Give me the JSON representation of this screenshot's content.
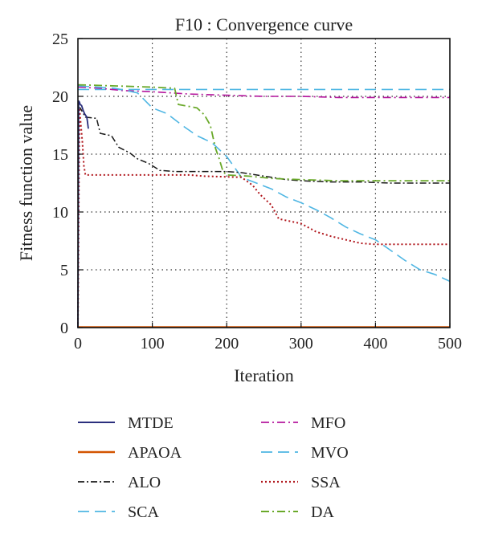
{
  "chart_data": {
    "type": "line",
    "title": "F10 : Convergence curve",
    "xlabel": "Iteration",
    "ylabel": "Fitness function value",
    "xlim": [
      0,
      500
    ],
    "ylim": [
      0,
      25
    ],
    "xticks": [
      0,
      100,
      200,
      300,
      400,
      500
    ],
    "yticks": [
      0,
      5,
      10,
      15,
      20,
      25
    ],
    "grid": true,
    "legend_position": "bottom, two columns",
    "series": [
      {
        "name": "MTDE",
        "color": "#2b2f7d",
        "dash": "",
        "width": 1.8,
        "x": [
          0,
          1,
          2,
          3,
          5,
          7,
          9,
          12,
          14
        ],
        "y": [
          0,
          19.6,
          19.5,
          19.3,
          19.2,
          18.8,
          18.5,
          18.2,
          17.2
        ]
      },
      {
        "name": "APAOA",
        "color": "#d35400",
        "dash": "",
        "width": 2.2,
        "x": [
          0,
          100,
          200,
          300,
          400,
          500
        ],
        "y": [
          0.05,
          0.05,
          0.05,
          0.05,
          0.05,
          0.05
        ]
      },
      {
        "name": "ALO",
        "color": "#1a1a1a",
        "dash": "8,3,2,3",
        "width": 1.5,
        "x": [
          0,
          3,
          10,
          25,
          30,
          45,
          55,
          70,
          80,
          95,
          110,
          130,
          170,
          200,
          220,
          240,
          260,
          280,
          300,
          340,
          380,
          420,
          460,
          500
        ],
        "y": [
          19.0,
          19.0,
          18.2,
          18.1,
          16.8,
          16.6,
          15.6,
          15.1,
          14.6,
          14.2,
          13.6,
          13.5,
          13.5,
          13.5,
          13.4,
          13.2,
          13.0,
          12.8,
          12.7,
          12.6,
          12.6,
          12.5,
          12.5,
          12.5
        ]
      },
      {
        "name": "SCA",
        "color": "#4fb6e3",
        "dash": "14,7",
        "width": 1.6,
        "x": [
          0,
          100,
          200,
          300,
          400,
          500
        ],
        "y": [
          20.6,
          20.6,
          20.6,
          20.6,
          20.6,
          20.6
        ]
      },
      {
        "name": "MFO",
        "color": "#b5179e",
        "dash": "10,4,2,4",
        "width": 1.6,
        "x": [
          0,
          30,
          60,
          100,
          150,
          200,
          250,
          300,
          350,
          400,
          450,
          500
        ],
        "y": [
          20.8,
          20.7,
          20.5,
          20.4,
          20.2,
          20.1,
          20.0,
          20.0,
          19.9,
          19.9,
          19.9,
          19.9
        ]
      },
      {
        "name": "MVO",
        "color": "#4fb6e3",
        "dash": "14,7",
        "width": 1.6,
        "x": [
          0,
          50,
          80,
          100,
          120,
          140,
          160,
          180,
          200,
          220,
          240,
          260,
          280,
          300,
          320,
          340,
          360,
          380,
          400,
          420,
          440,
          460,
          480,
          500
        ],
        "y": [
          20.9,
          20.7,
          20.3,
          19.0,
          18.5,
          17.5,
          16.6,
          16.0,
          14.8,
          13.0,
          12.5,
          12.0,
          11.3,
          10.8,
          10.2,
          9.5,
          8.7,
          8.1,
          7.6,
          6.7,
          5.8,
          5.0,
          4.6,
          4.0
        ]
      },
      {
        "name": "SSA",
        "color": "#b0151b",
        "dash": "2,3",
        "width": 2.0,
        "x": [
          0,
          2,
          4,
          6,
          8,
          10,
          30,
          100,
          150,
          170,
          220,
          235,
          245,
          260,
          270,
          300,
          320,
          340,
          360,
          380,
          400,
          450,
          500
        ],
        "y": [
          0,
          19.0,
          17.5,
          16.0,
          14.0,
          13.2,
          13.2,
          13.2,
          13.2,
          13.1,
          13.0,
          12.3,
          11.5,
          10.6,
          9.4,
          9.0,
          8.3,
          7.9,
          7.6,
          7.3,
          7.2,
          7.2,
          7.2
        ]
      },
      {
        "name": "DA",
        "color": "#6aa92a",
        "dash": "10,4,2,4",
        "width": 1.8,
        "x": [
          0,
          50,
          100,
          130,
          135,
          160,
          170,
          178,
          185,
          190,
          195,
          200,
          230,
          260,
          300,
          350,
          400,
          450,
          500
        ],
        "y": [
          21.0,
          20.9,
          20.8,
          20.7,
          19.3,
          19.0,
          18.4,
          17.5,
          15.5,
          14.6,
          13.5,
          13.2,
          13.1,
          12.9,
          12.8,
          12.7,
          12.7,
          12.7,
          12.7
        ]
      }
    ]
  }
}
